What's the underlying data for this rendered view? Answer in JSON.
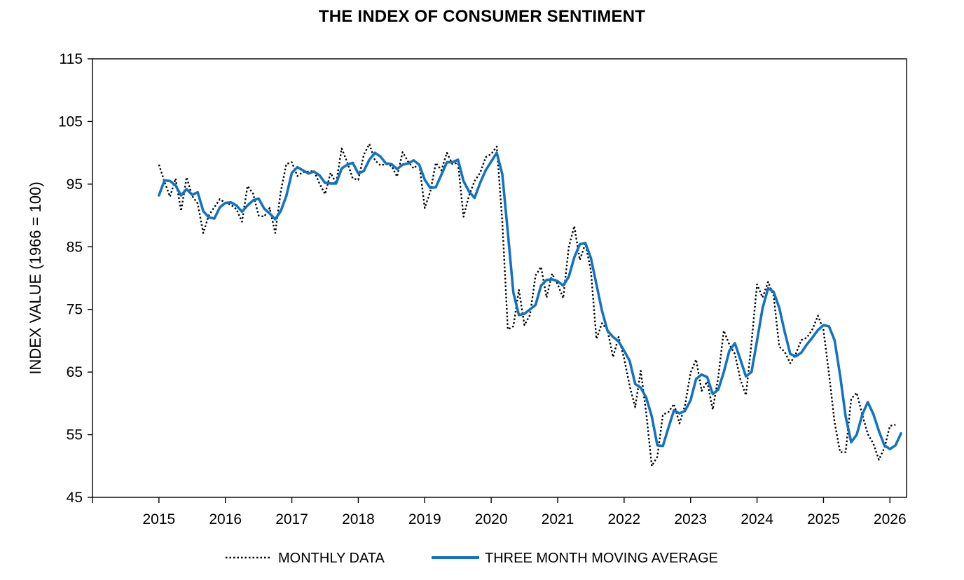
{
  "chart_data": {
    "type": "line",
    "title": "THE INDEX OF CONSUMER SENTIMENT",
    "xlabel": "",
    "ylabel": "INDEX VALUE (1966 = 100)",
    "ylim": [
      45,
      115
    ],
    "yticks": [
      "115",
      "105",
      "95",
      "85",
      "75",
      "65",
      "55",
      "45"
    ],
    "xlim": [
      2014,
      2026.25
    ],
    "xticks": [
      "2015",
      "2016",
      "2017",
      "2018",
      "2019",
      "2020",
      "2021",
      "2022",
      "2023",
      "2024",
      "2025",
      "2026"
    ],
    "grid": false,
    "legend_position": "bottom",
    "colors": {
      "monthly": "#000000",
      "average": "#1273c3"
    },
    "series": [
      {
        "name": "MONTHLY DATA",
        "style": "dotted",
        "x_start": "2015-01",
        "values": [
          98.1,
          95.4,
          93.0,
          95.9,
          90.7,
          96.1,
          93.1,
          91.9,
          87.2,
          90.0,
          91.3,
          92.6,
          92.0,
          91.7,
          91.0,
          89.0,
          94.7,
          93.5,
          90.0,
          89.8,
          91.2,
          87.2,
          93.8,
          98.2,
          98.5,
          96.3,
          96.9,
          97.0,
          97.1,
          95.1,
          93.4,
          96.8,
          95.1,
          100.7,
          98.5,
          95.9,
          95.7,
          99.7,
          101.4,
          98.8,
          98.0,
          98.2,
          97.9,
          96.2,
          100.1,
          98.6,
          97.5,
          98.3,
          91.2,
          93.8,
          98.4,
          97.2,
          100.0,
          98.2,
          98.4,
          89.8,
          93.2,
          95.5,
          96.8,
          99.3,
          99.8,
          101.0,
          89.1,
          71.8,
          72.3,
          78.1,
          72.5,
          74.1,
          80.4,
          81.8,
          76.9,
          80.7,
          79.0,
          76.8,
          84.9,
          88.3,
          82.9,
          85.5,
          81.2,
          70.3,
          72.8,
          71.7,
          67.4,
          70.6,
          67.2,
          62.8,
          59.4,
          65.2,
          58.4,
          50.0,
          51.5,
          58.2,
          58.6,
          59.9,
          56.8,
          59.7,
          64.9,
          67.0,
          62.0,
          63.5,
          59.0,
          64.2,
          71.6,
          69.4,
          67.9,
          63.8,
          61.3,
          69.7,
          79.0,
          76.9,
          79.4,
          77.2,
          69.1,
          68.2,
          66.4,
          67.9,
          70.1,
          70.5,
          71.8,
          74.0,
          71.7,
          64.7,
          57.0,
          52.2,
          52.2,
          60.7,
          61.7,
          58.2,
          55.1,
          53.6,
          51.0,
          52.9,
          56.4,
          56.6
        ]
      },
      {
        "name": "THREE MONTH MOVING AVERAGE",
        "style": "solid",
        "x_start": "2015-01",
        "values": [
          93.2,
          95.6,
          95.5,
          94.8,
          93.2,
          94.2,
          93.3,
          93.7,
          90.7,
          89.7,
          89.5,
          91.3,
          92.0,
          92.1,
          91.6,
          90.6,
          91.6,
          92.4,
          92.7,
          91.1,
          90.3,
          89.4,
          90.7,
          93.1,
          96.8,
          97.7,
          97.2,
          96.7,
          97.0,
          96.4,
          95.2,
          95.1,
          95.1,
          97.5,
          98.1,
          98.4,
          96.7,
          97.1,
          98.9,
          100.0,
          99.4,
          98.3,
          98.2,
          97.4,
          98.1,
          98.3,
          98.8,
          98.1,
          95.7,
          94.4,
          94.5,
          96.5,
          98.5,
          98.5,
          98.9,
          95.5,
          93.8,
          92.8,
          95.2,
          97.2,
          98.6,
          100.0,
          96.6,
          87.3,
          77.7,
          74.1,
          74.3,
          75.0,
          75.7,
          78.8,
          79.7,
          79.8,
          79.5,
          78.8,
          80.2,
          83.3,
          85.4,
          85.6,
          83.2,
          79.0,
          74.8,
          71.6,
          70.6,
          69.9,
          68.4,
          66.8,
          63.1,
          62.5,
          60.9,
          57.9,
          53.3,
          53.2,
          56.1,
          58.9,
          58.4,
          58.8,
          60.5,
          63.9,
          64.6,
          64.2,
          61.5,
          62.2,
          65.0,
          68.4,
          69.6,
          67.0,
          64.3,
          65.0,
          70.0,
          75.2,
          78.4,
          77.8,
          75.3,
          71.4,
          67.9,
          67.5,
          68.1,
          69.4,
          70.5,
          71.7,
          72.5,
          72.3,
          70.1,
          64.5,
          57.9,
          53.8,
          55.0,
          58.2,
          60.2,
          58.3,
          55.6,
          53.3,
          52.7,
          53.3,
          55.2
        ]
      }
    ]
  }
}
